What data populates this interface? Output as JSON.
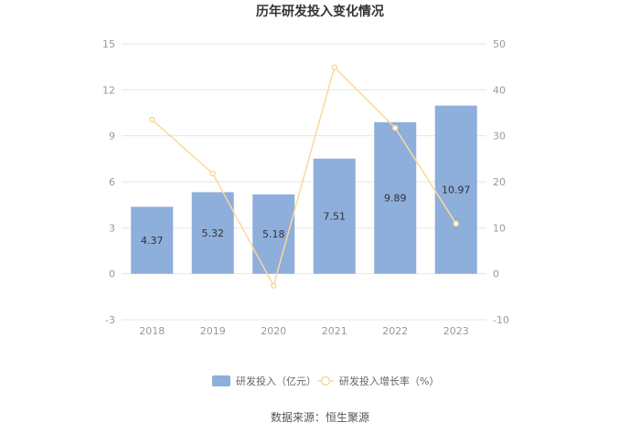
{
  "chart_data": {
    "type": "bar",
    "title": "历年研发投入变化情况",
    "categories": [
      "2018",
      "2019",
      "2020",
      "2021",
      "2022",
      "2023"
    ],
    "series": [
      {
        "name": "研发投入（亿元）",
        "type": "bar",
        "axis": "left",
        "color": "#8eaedb",
        "values": [
          4.37,
          5.32,
          5.18,
          7.51,
          9.89,
          10.97
        ],
        "labels": [
          "4.37",
          "5.32",
          "5.18",
          "7.51",
          "9.89",
          "10.97"
        ]
      },
      {
        "name": "研发投入增长率（%）",
        "type": "line",
        "axis": "right",
        "color": "#fcd89a",
        "values": [
          33.5,
          21.8,
          -2.6,
          44.9,
          31.7,
          10.9
        ]
      }
    ],
    "y_left": {
      "min": -3,
      "max": 15,
      "ticks": [
        "15",
        "12",
        "9",
        "6",
        "3",
        "0",
        "-3"
      ]
    },
    "y_right": {
      "min": -10,
      "max": 50,
      "ticks": [
        "50",
        "40",
        "30",
        "20",
        "10",
        "0",
        "-10"
      ]
    },
    "grid": true,
    "legend_position": "bottom"
  },
  "source": "数据来源：恒生聚源"
}
